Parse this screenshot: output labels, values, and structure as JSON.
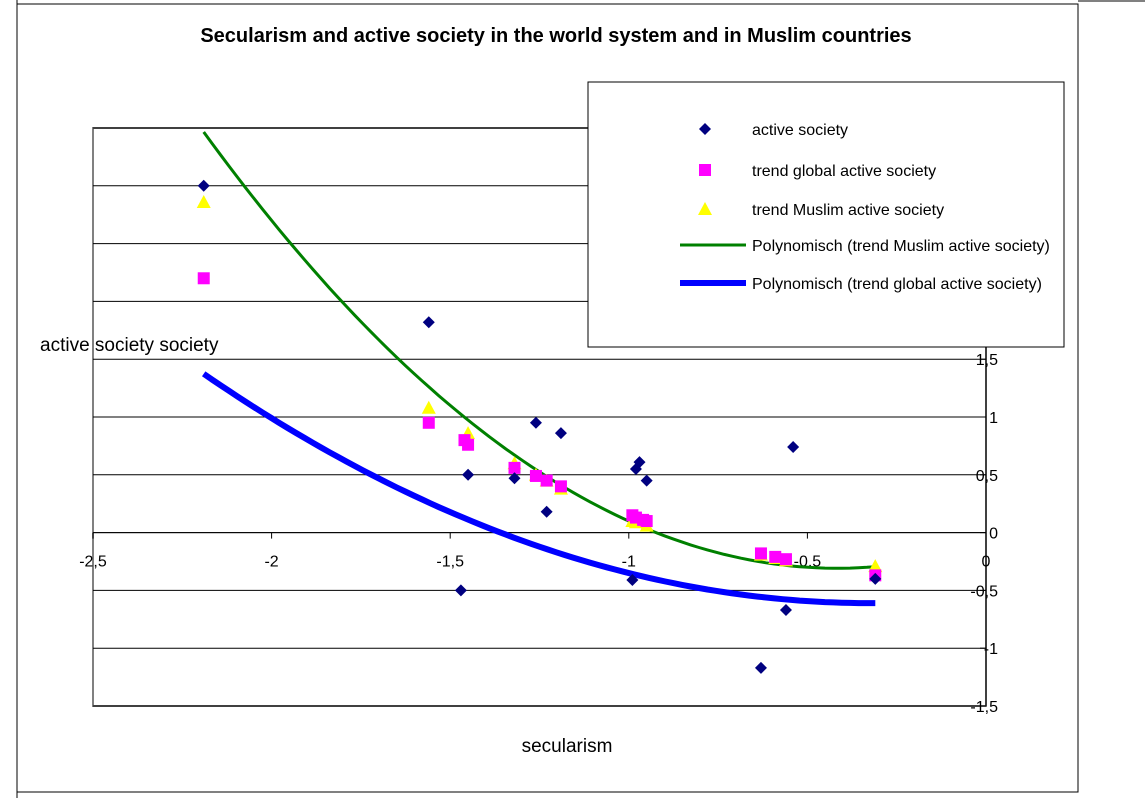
{
  "chart_data": {
    "type": "scatter",
    "title": "Secularism and active society in the world system and in Muslim countries",
    "xlabel": "secularism",
    "ylabel": "active society society",
    "xlim": [
      -2.5,
      0
    ],
    "ylim": [
      -1.5,
      3.5
    ],
    "x_ticks": [
      -2.5,
      -2,
      -1.5,
      -1,
      -0.5,
      0
    ],
    "x_tick_labels": [
      "-2,5",
      "-2",
      "-1,5",
      "-1",
      "-0,5",
      "0"
    ],
    "y_ticks": [
      -1.5,
      -1,
      -0.5,
      0,
      0.5,
      1,
      1.5,
      2,
      2.5,
      3,
      3.5
    ],
    "y_tick_labels": [
      "-1,5",
      "-1",
      "-0,5",
      "0",
      "0,5",
      "1",
      "1,5",
      "",
      "",
      "",
      ""
    ],
    "grid": "horizontal",
    "legend_position": "top-right",
    "legend": [
      "active society",
      "trend global active society",
      "trend Muslim active society",
      "Polynomisch (trend Muslim active society)",
      "Polynomisch (trend global active society)"
    ],
    "series": [
      {
        "name": "active society",
        "marker": "diamond",
        "color": "#000080",
        "points": [
          [
            -2.19,
            3.0
          ],
          [
            -1.56,
            1.82
          ],
          [
            -1.47,
            -0.5
          ],
          [
            -1.45,
            0.5
          ],
          [
            -1.32,
            0.47
          ],
          [
            -1.26,
            0.95
          ],
          [
            -1.23,
            0.18
          ],
          [
            -1.19,
            0.86
          ],
          [
            -0.99,
            -0.41
          ],
          [
            -0.98,
            0.55
          ],
          [
            -0.97,
            0.61
          ],
          [
            -0.95,
            0.45
          ],
          [
            -0.63,
            -1.17
          ],
          [
            -0.56,
            -0.67
          ],
          [
            -0.54,
            0.74
          ],
          [
            -0.31,
            -0.4
          ]
        ]
      },
      {
        "name": "trend global active society",
        "marker": "square",
        "color": "#FF00FF",
        "points": [
          [
            -2.19,
            2.2
          ],
          [
            -1.56,
            0.95
          ],
          [
            -1.46,
            0.8
          ],
          [
            -1.45,
            0.76
          ],
          [
            -1.32,
            0.56
          ],
          [
            -1.26,
            0.49
          ],
          [
            -1.23,
            0.45
          ],
          [
            -1.19,
            0.4
          ],
          [
            -0.99,
            0.15
          ],
          [
            -0.98,
            0.13
          ],
          [
            -0.96,
            0.11
          ],
          [
            -0.95,
            0.1
          ],
          [
            -0.63,
            -0.18
          ],
          [
            -0.59,
            -0.21
          ],
          [
            -0.56,
            -0.23
          ],
          [
            -0.31,
            -0.37
          ]
        ]
      },
      {
        "name": "trend Muslim active society",
        "marker": "triangle",
        "color": "#FFFF00",
        "points": [
          [
            -2.19,
            2.86
          ],
          [
            -1.56,
            1.08
          ],
          [
            -1.45,
            0.86
          ],
          [
            -1.32,
            0.6
          ],
          [
            -1.26,
            0.5
          ],
          [
            -1.23,
            0.45
          ],
          [
            -1.19,
            0.38
          ],
          [
            -0.99,
            0.1
          ],
          [
            -0.98,
            0.09
          ],
          [
            -0.95,
            0.06
          ],
          [
            -0.63,
            -0.19
          ],
          [
            -0.59,
            -0.22
          ],
          [
            -0.56,
            -0.24
          ],
          [
            -0.31,
            -0.29
          ]
        ]
      }
    ],
    "trendlines": [
      {
        "name": "Polynomisch (trend Muslim active society)",
        "color": "#008000",
        "width": 3,
        "x_range": [
          -2.19,
          -0.31
        ],
        "coef": [
          -0.1,
          1.0,
          1.2
        ],
        "basis": "a + b*x + c*x^2"
      },
      {
        "name": "Polynomisch (trend global active society)",
        "color": "#0000FF",
        "width": 6,
        "x_range": [
          -2.19,
          -0.31
        ],
        "coef": [
          -0.55,
          0.37,
          0.57
        ],
        "basis": "a + b*x + c*x^2"
      }
    ]
  }
}
